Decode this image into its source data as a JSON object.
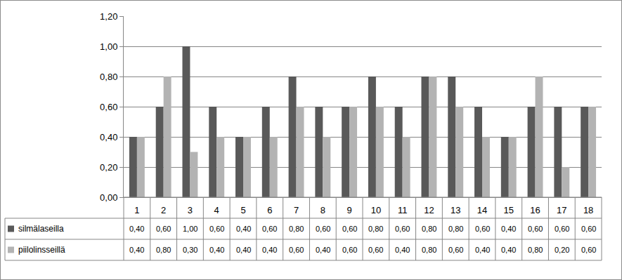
{
  "chart_data": {
    "type": "bar",
    "categories": [
      "1",
      "2",
      "3",
      "4",
      "5",
      "6",
      "7",
      "8",
      "9",
      "10",
      "11",
      "12",
      "13",
      "14",
      "15",
      "16",
      "17",
      "18"
    ],
    "series": [
      {
        "name": "silmälaseilla",
        "color": "#595959",
        "values": [
          0.4,
          0.6,
          1.0,
          0.6,
          0.4,
          0.6,
          0.8,
          0.6,
          0.6,
          0.8,
          0.6,
          0.8,
          0.8,
          0.6,
          0.4,
          0.6,
          0.6,
          0.6
        ],
        "value_labels": [
          "0,40",
          "0,60",
          "1,00",
          "0,60",
          "0,40",
          "0,60",
          "0,80",
          "0,60",
          "0,60",
          "0,80",
          "0,60",
          "0,80",
          "0,80",
          "0,60",
          "0,40",
          "0,60",
          "0,60",
          "0,60"
        ]
      },
      {
        "name": "piilolinsseillä",
        "color": "#b3b3b3",
        "values": [
          0.4,
          0.8,
          0.3,
          0.4,
          0.4,
          0.4,
          0.6,
          0.4,
          0.6,
          0.6,
          0.4,
          0.8,
          0.6,
          0.4,
          0.4,
          0.8,
          0.2,
          0.6
        ],
        "value_labels": [
          "0,40",
          "0,80",
          "0,30",
          "0,40",
          "0,40",
          "0,40",
          "0,60",
          "0,40",
          "0,60",
          "0,60",
          "0,40",
          "0,80",
          "0,60",
          "0,40",
          "0,40",
          "0,80",
          "0,20",
          "0,60"
        ]
      }
    ],
    "ylim": [
      0,
      1.2
    ],
    "yticks": [
      {
        "value": 0,
        "label": "0,00"
      },
      {
        "value": 0.2,
        "label": "0,20"
      },
      {
        "value": 0.4,
        "label": "0,40"
      },
      {
        "value": 0.6,
        "label": "0,60"
      },
      {
        "value": 0.8,
        "label": "0,80"
      },
      {
        "value": 1.0,
        "label": "1,00"
      },
      {
        "value": 1.2,
        "label": "1,20"
      }
    ],
    "grid": true,
    "legend": "bottom"
  }
}
